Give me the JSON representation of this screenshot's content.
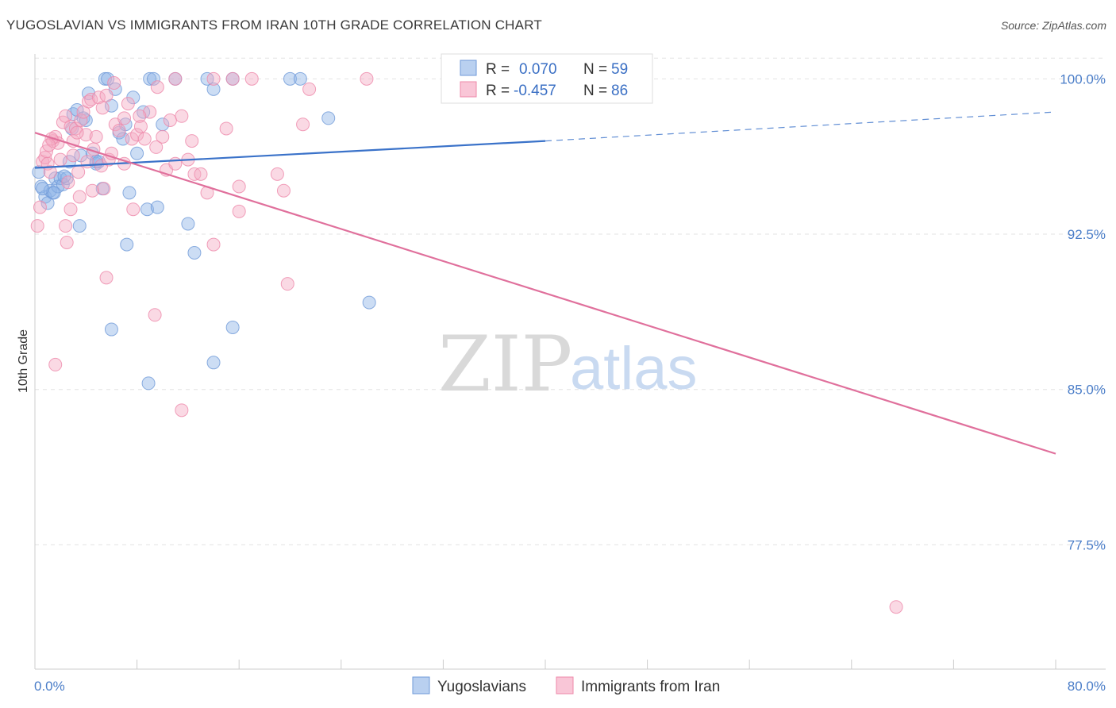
{
  "title": "YUGOSLAVIAN VS IMMIGRANTS FROM IRAN 10TH GRADE CORRELATION CHART",
  "source": "Source: ZipAtlas.com",
  "watermark": {
    "zip": "ZIP",
    "atlas": "atlas"
  },
  "chart_data": {
    "type": "scatter",
    "xlabel": "",
    "ylabel": "10th Grade",
    "xlim": [
      0,
      80
    ],
    "ylim": [
      71.5,
      101.2
    ],
    "x_tick_labels": {
      "min": "0.0%",
      "max": "80.0%"
    },
    "y_ticks": [
      {
        "value": 100.0,
        "label": "100.0%"
      },
      {
        "value": 92.5,
        "label": "92.5%"
      },
      {
        "value": 85.0,
        "label": "85.0%"
      },
      {
        "value": 77.5,
        "label": "77.5%"
      }
    ],
    "legend": [
      {
        "r_label": "R =",
        "r_value": "0.070",
        "n_label": "N =",
        "n_value": "59"
      },
      {
        "r_label": "R =",
        "r_value": "-0.457",
        "n_label": "N =",
        "n_value": "86"
      }
    ],
    "series": [
      {
        "name": "Yugoslavians",
        "color": "#8fb4e6",
        "stroke": "#6f9ad8",
        "trend": {
          "x0": 0,
          "y0": 95.7,
          "x1": 40,
          "y1": 97.0,
          "dash_to_x": 80,
          "dash_to_y": 98.4,
          "color": "#3a72c9"
        },
        "points": [
          [
            0.3,
            95.5
          ],
          [
            0.5,
            94.8
          ],
          [
            0.8,
            94.3
          ],
          [
            1.0,
            94.0
          ],
          [
            1.2,
            94.6
          ],
          [
            1.4,
            94.5
          ],
          [
            1.6,
            95.2
          ],
          [
            1.8,
            94.8
          ],
          [
            2.0,
            95.2
          ],
          [
            2.2,
            94.9
          ],
          [
            2.5,
            95.2
          ],
          [
            2.7,
            96.0
          ],
          [
            2.9,
            97.6
          ],
          [
            3.0,
            98.3
          ],
          [
            3.3,
            98.5
          ],
          [
            3.6,
            96.3
          ],
          [
            3.8,
            98.1
          ],
          [
            4.0,
            98.0
          ],
          [
            4.2,
            99.3
          ],
          [
            4.5,
            96.4
          ],
          [
            4.8,
            95.9
          ],
          [
            5.0,
            96.0
          ],
          [
            5.3,
            94.7
          ],
          [
            5.5,
            100.0
          ],
          [
            5.7,
            100.0
          ],
          [
            6.0,
            98.7
          ],
          [
            6.3,
            99.5
          ],
          [
            6.6,
            97.4
          ],
          [
            6.9,
            97.1
          ],
          [
            7.1,
            97.8
          ],
          [
            7.4,
            94.5
          ],
          [
            7.7,
            99.1
          ],
          [
            8.0,
            96.4
          ],
          [
            8.5,
            98.4
          ],
          [
            8.8,
            93.7
          ],
          [
            9.0,
            100.0
          ],
          [
            9.3,
            100.0
          ],
          [
            9.6,
            93.8
          ],
          [
            10.0,
            97.8
          ],
          [
            11.0,
            100.0
          ],
          [
            12.0,
            93.0
          ],
          [
            12.5,
            91.6
          ],
          [
            13.5,
            100.0
          ],
          [
            14.0,
            99.5
          ],
          [
            15.5,
            100.0
          ],
          [
            20.0,
            100.0
          ],
          [
            20.8,
            100.0
          ],
          [
            23.0,
            98.1
          ],
          [
            3.5,
            92.9
          ],
          [
            7.2,
            92.0
          ],
          [
            6.0,
            87.9
          ],
          [
            15.5,
            88.0
          ],
          [
            26.2,
            89.2
          ],
          [
            14.0,
            86.3
          ],
          [
            8.9,
            85.3
          ],
          [
            2.3,
            95.3
          ],
          [
            1.5,
            94.5
          ],
          [
            0.6,
            94.7
          ],
          [
            4.8,
            96.0
          ]
        ]
      },
      {
        "name": "Immigrants from Iran",
        "color": "#f4aac3",
        "stroke": "#ee88aa",
        "trend": {
          "x0": 0,
          "y0": 97.4,
          "x1": 80,
          "y1": 81.9,
          "color": "#e0709c"
        },
        "points": [
          [
            0.2,
            92.9
          ],
          [
            0.4,
            93.8
          ],
          [
            0.6,
            96.0
          ],
          [
            0.8,
            96.2
          ],
          [
            1.0,
            95.9
          ],
          [
            1.2,
            95.5
          ],
          [
            1.4,
            97.0
          ],
          [
            1.6,
            97.2
          ],
          [
            1.8,
            96.9
          ],
          [
            2.0,
            96.1
          ],
          [
            2.2,
            97.9
          ],
          [
            2.4,
            98.2
          ],
          [
            2.6,
            95.0
          ],
          [
            2.8,
            97.7
          ],
          [
            3.0,
            96.3
          ],
          [
            3.2,
            97.6
          ],
          [
            3.4,
            95.5
          ],
          [
            3.6,
            98.0
          ],
          [
            3.8,
            98.4
          ],
          [
            4.0,
            97.3
          ],
          [
            4.2,
            98.9
          ],
          [
            4.4,
            99.0
          ],
          [
            4.6,
            96.6
          ],
          [
            4.8,
            97.2
          ],
          [
            5.0,
            99.1
          ],
          [
            5.2,
            95.8
          ],
          [
            5.4,
            94.7
          ],
          [
            5.6,
            99.2
          ],
          [
            5.8,
            96.1
          ],
          [
            6.0,
            96.4
          ],
          [
            6.3,
            97.8
          ],
          [
            6.6,
            97.5
          ],
          [
            7.0,
            95.9
          ],
          [
            7.3,
            98.8
          ],
          [
            7.6,
            97.1
          ],
          [
            8.0,
            97.3
          ],
          [
            8.3,
            97.7
          ],
          [
            8.6,
            97.1
          ],
          [
            9.0,
            98.4
          ],
          [
            9.5,
            96.7
          ],
          [
            10.0,
            97.2
          ],
          [
            10.3,
            95.6
          ],
          [
            10.6,
            98.0
          ],
          [
            11.0,
            95.9
          ],
          [
            11.5,
            98.2
          ],
          [
            12.0,
            96.1
          ],
          [
            12.5,
            95.4
          ],
          [
            13.0,
            95.4
          ],
          [
            13.5,
            94.5
          ],
          [
            14.0,
            100.0
          ],
          [
            15.0,
            97.6
          ],
          [
            15.5,
            100.0
          ],
          [
            16.0,
            94.8
          ],
          [
            17.0,
            100.0
          ],
          [
            19.0,
            95.4
          ],
          [
            19.5,
            94.6
          ],
          [
            21.0,
            97.8
          ],
          [
            21.5,
            99.5
          ],
          [
            26.0,
            100.0
          ],
          [
            11.0,
            100.0
          ],
          [
            3.5,
            94.3
          ],
          [
            2.8,
            93.7
          ],
          [
            4.5,
            94.6
          ],
          [
            7.7,
            93.7
          ],
          [
            16.0,
            93.6
          ],
          [
            2.4,
            92.9
          ],
          [
            2.5,
            92.1
          ],
          [
            14.0,
            92.0
          ],
          [
            19.8,
            90.1
          ],
          [
            5.6,
            90.4
          ],
          [
            9.4,
            88.6
          ],
          [
            1.6,
            86.2
          ],
          [
            11.5,
            84.0
          ],
          [
            67.5,
            74.5
          ],
          [
            0.9,
            96.5
          ],
          [
            1.3,
            97.1
          ],
          [
            3.0,
            97.0
          ],
          [
            5.3,
            98.6
          ],
          [
            6.2,
            99.8
          ],
          [
            8.2,
            98.2
          ],
          [
            9.6,
            99.6
          ],
          [
            12.3,
            97.0
          ],
          [
            7.0,
            98.1
          ],
          [
            4.1,
            96.0
          ],
          [
            3.3,
            97.4
          ],
          [
            1.1,
            96.8
          ]
        ]
      }
    ]
  }
}
